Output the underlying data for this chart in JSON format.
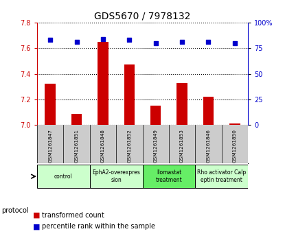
{
  "title": "GDS5670 / 7978132",
  "samples": [
    "GSM1261847",
    "GSM1261851",
    "GSM1261848",
    "GSM1261852",
    "GSM1261849",
    "GSM1261853",
    "GSM1261846",
    "GSM1261850"
  ],
  "transformed_count": [
    7.32,
    7.09,
    7.65,
    7.47,
    7.15,
    7.33,
    7.22,
    7.01
  ],
  "percentile_rank": [
    83,
    81,
    84,
    83,
    80,
    81,
    81,
    80
  ],
  "ylim_left": [
    7.0,
    7.8
  ],
  "ylim_right": [
    0,
    100
  ],
  "yticks_left": [
    7.0,
    7.2,
    7.4,
    7.6,
    7.8
  ],
  "yticks_right": [
    0,
    25,
    50,
    75,
    100
  ],
  "bar_color": "#cc0000",
  "dot_color": "#0000cc",
  "protocols": [
    {
      "label": "control",
      "indices": [
        0,
        1
      ],
      "color": "#ccffcc"
    },
    {
      "label": "EphA2-overexpres\nsion",
      "indices": [
        2,
        3
      ],
      "color": "#ccffcc"
    },
    {
      "label": "Ilomastat\ntreatment",
      "indices": [
        4,
        5
      ],
      "color": "#66ee66"
    },
    {
      "label": "Rho activator Calp\neptin treatment",
      "indices": [
        6,
        7
      ],
      "color": "#ccffcc"
    }
  ],
  "sample_box_color": "#cccccc",
  "ylabel_left_color": "#cc0000",
  "ylabel_right_color": "#0000cc"
}
